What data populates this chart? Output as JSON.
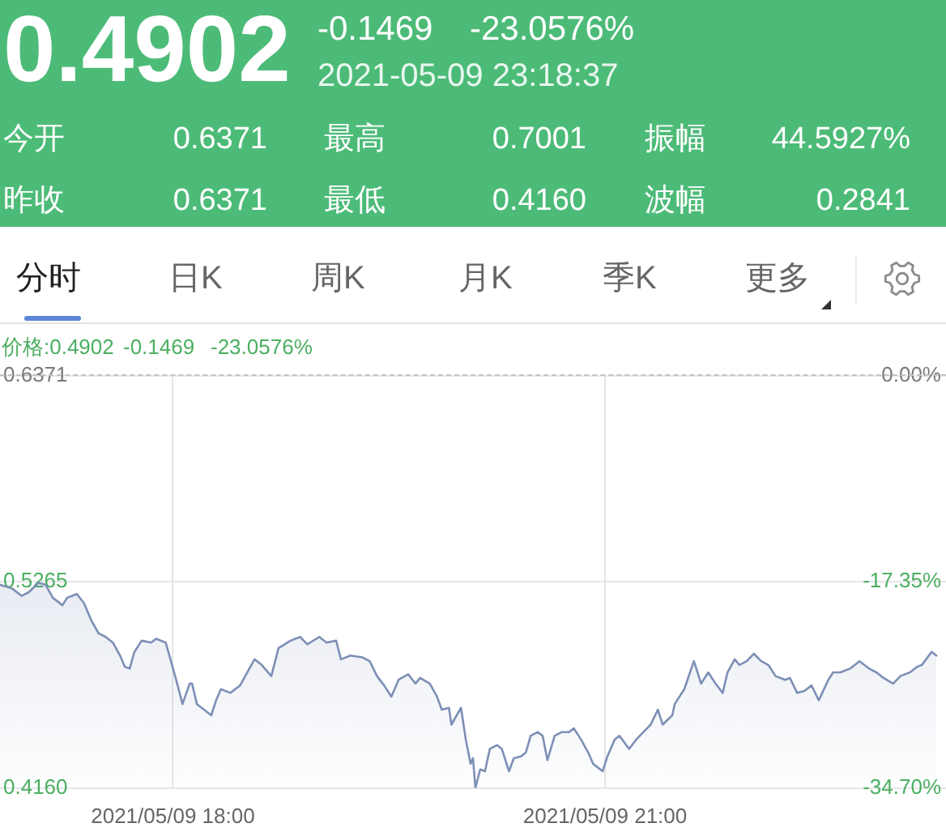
{
  "chart_data": {
    "type": "area",
    "annotations": [
      "0.4902",
      "-0.1469",
      "-23.0576%",
      "2021-05-09 23:18:37",
      "今开",
      "0.6371",
      "最高",
      "0.7001",
      "振幅",
      "44.5927%",
      "昨收",
      "0.6371",
      "最低",
      "0.4160",
      "波幅",
      "0.2841",
      "分时",
      "日K",
      "周K",
      "月K",
      "季K",
      "更多",
      "价格:0.4902",
      "-0.1469",
      "-23.0576%"
    ],
    "x": [
      "2021-05-09T16:48",
      "2021-05-09T16:53",
      "2021-05-09T16:57",
      "2021-05-09T17:00",
      "2021-05-09T17:04",
      "2021-05-09T17:07",
      "2021-05-09T17:10",
      "2021-05-09T17:14",
      "2021-05-09T17:16",
      "2021-05-09T17:20",
      "2021-05-09T17:23",
      "2021-05-09T17:26",
      "2021-05-09T17:29",
      "2021-05-09T17:32",
      "2021-05-09T17:35",
      "2021-05-09T17:38",
      "2021-05-09T17:40",
      "2021-05-09T17:42",
      "2021-05-09T17:44",
      "2021-05-09T17:47",
      "2021-05-09T17:51",
      "2021-05-09T17:53",
      "2021-05-09T17:57",
      "2021-05-09T17:59",
      "2021-05-09T18:02",
      "2021-05-09T18:04",
      "2021-05-09T18:07",
      "2021-05-09T18:08",
      "2021-05-09T18:10",
      "2021-05-09T18:13",
      "2021-05-09T18:16",
      "2021-05-09T18:18",
      "2021-05-09T18:20",
      "2021-05-09T18:24",
      "2021-05-09T18:28",
      "2021-05-09T18:34",
      "2021-05-09T18:37",
      "2021-05-09T18:41",
      "2021-05-09T18:44",
      "2021-05-09T18:49",
      "2021-05-09T18:53",
      "2021-05-09T18:56",
      "2021-05-09T19:01",
      "2021-05-09T19:04",
      "2021-05-09T19:08",
      "2021-05-09T19:10",
      "2021-05-09T19:14",
      "2021-05-09T19:19",
      "2021-05-09T19:22",
      "2021-05-09T19:25",
      "2021-05-09T19:28",
      "2021-05-09T19:31",
      "2021-05-09T19:34",
      "2021-05-09T19:38",
      "2021-05-09T19:41",
      "2021-05-09T19:43",
      "2021-05-09T19:47",
      "2021-05-09T19:50",
      "2021-05-09T19:52",
      "2021-05-09T19:55",
      "2021-05-09T19:56",
      "2021-05-09T20:00",
      "2021-05-09T20:02",
      "2021-05-09T20:04",
      "2021-05-09T20:05",
      "2021-05-09T20:06",
      "2021-05-09T20:08",
      "2021-05-09T20:10",
      "2021-05-09T20:12",
      "2021-05-09T20:15",
      "2021-05-09T20:17",
      "2021-05-09T20:20",
      "2021-05-09T20:22",
      "2021-05-09T20:25",
      "2021-05-09T20:27",
      "2021-05-09T20:29",
      "2021-05-09T20:32",
      "2021-05-09T20:34",
      "2021-05-09T20:36",
      "2021-05-09T20:39",
      "2021-05-09T20:42",
      "2021-05-09T20:45",
      "2021-05-09T20:47",
      "2021-05-09T20:50",
      "2021-05-09T20:53",
      "2021-05-09T20:55",
      "2021-05-09T20:59",
      "2021-05-09T21:01",
      "2021-05-09T21:04",
      "2021-05-09T21:06",
      "2021-05-09T21:10",
      "2021-05-09T21:13",
      "2021-05-09T21:16",
      "2021-05-09T21:19",
      "2021-05-09T21:22",
      "2021-05-09T21:24",
      "2021-05-09T21:28",
      "2021-05-09T21:29",
      "2021-05-09T21:33",
      "2021-05-09T21:37",
      "2021-05-09T21:40",
      "2021-05-09T21:43",
      "2021-05-09T21:46",
      "2021-05-09T21:49",
      "2021-05-09T21:51",
      "2021-05-09T21:54",
      "2021-05-09T21:56",
      "2021-05-09T21:59",
      "2021-05-09T22:02",
      "2021-05-09T22:05",
      "2021-05-09T22:08",
      "2021-05-09T22:11",
      "2021-05-09T22:15",
      "2021-05-09T22:17",
      "2021-05-09T22:20",
      "2021-05-09T22:23",
      "2021-05-09T22:26",
      "2021-05-09T22:29",
      "2021-05-09T22:33",
      "2021-05-09T22:35",
      "2021-05-09T22:38",
      "2021-05-09T22:42",
      "2021-05-09T22:46",
      "2021-05-09T22:50",
      "2021-05-09T22:53",
      "2021-05-09T22:56",
      "2021-05-09T23:00",
      "2021-05-09T23:03",
      "2021-05-09T23:07",
      "2021-05-09T23:10",
      "2021-05-09T23:12",
      "2021-05-09T23:16",
      "2021-05-09T23:18"
    ],
    "values": [
      0.525,
      0.523,
      0.519,
      0.521,
      0.526,
      0.525,
      0.518,
      0.514,
      0.518,
      0.52,
      0.515,
      0.506,
      0.499,
      0.497,
      0.494,
      0.487,
      0.481,
      0.48,
      0.489,
      0.495,
      0.494,
      0.496,
      0.494,
      0.485,
      0.471,
      0.461,
      0.472,
      0.472,
      0.461,
      0.458,
      0.455,
      0.463,
      0.469,
      0.467,
      0.471,
      0.485,
      0.482,
      0.476,
      0.491,
      0.495,
      0.497,
      0.493,
      0.497,
      0.494,
      0.495,
      0.485,
      0.487,
      0.486,
      0.484,
      0.476,
      0.471,
      0.465,
      0.474,
      0.477,
      0.472,
      0.475,
      0.472,
      0.465,
      0.458,
      0.459,
      0.45,
      0.459,
      0.442,
      0.429,
      0.432,
      0.416,
      0.426,
      0.425,
      0.437,
      0.439,
      0.437,
      0.425,
      0.432,
      0.433,
      0.435,
      0.444,
      0.446,
      0.444,
      0.431,
      0.444,
      0.446,
      0.446,
      0.448,
      0.442,
      0.435,
      0.429,
      0.425,
      0.433,
      0.442,
      0.444,
      0.437,
      0.442,
      0.446,
      0.45,
      0.458,
      0.45,
      0.455,
      0.461,
      0.469,
      0.484,
      0.472,
      0.478,
      0.472,
      0.467,
      0.478,
      0.485,
      0.482,
      0.484,
      0.488,
      0.484,
      0.482,
      0.476,
      0.474,
      0.475,
      0.467,
      0.468,
      0.471,
      0.463,
      0.474,
      0.478,
      0.478,
      0.48,
      0.484,
      0.48,
      0.478,
      0.475,
      0.472,
      0.476,
      0.478,
      0.481,
      0.482,
      0.489,
      0.487
    ],
    "color": "#7d8fb6",
    "xlim": [
      "2021-05-09T16:48",
      "2021-05-09T23:22"
    ],
    "xticks": [
      {
        "value": "2021-05-09T18:00",
        "label": "2021/05/09 18:00"
      },
      {
        "value": "2021-05-09T21:00",
        "label": "2021/05/09 21:00"
      }
    ],
    "ylim": [
      0.416,
      0.6371
    ],
    "yticks": [
      {
        "value": 0.416,
        "label": "0.4160"
      },
      0.5265,
      0.6371
    ],
    "y2lim": [
      -34.7,
      0
    ],
    "y2ticks": [
      {
        "value": -34.7,
        "label": "-34.70%"
      },
      {
        "value": -17.35,
        "label": "-17.35%"
      },
      {
        "value": 0,
        "label": "0.00%"
      }
    ],
    "grid": true
  }
}
